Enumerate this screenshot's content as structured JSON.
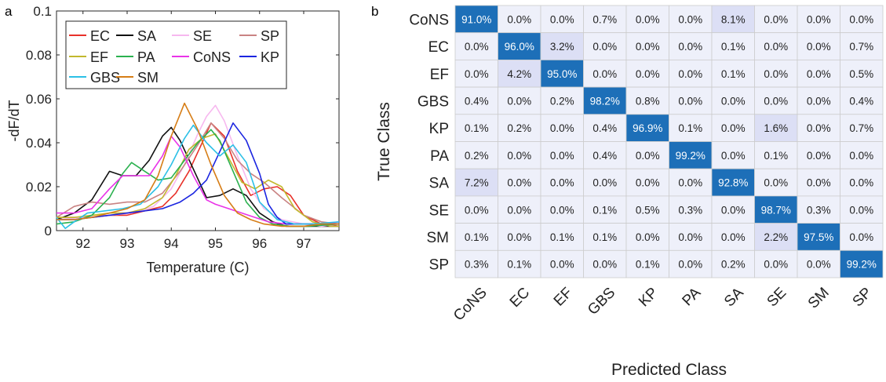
{
  "panel_a_label": "a",
  "panel_b_label": "b",
  "chart_data": [
    {
      "type": "line",
      "xlabel": "Temperature (C)",
      "ylabel": "-dF/dT",
      "xlim": [
        91.4,
        97.8
      ],
      "ylim": [
        0,
        0.1
      ],
      "xticks": [
        92,
        93,
        94,
        95,
        96,
        97
      ],
      "yticks": [
        0,
        0.02,
        0.04,
        0.06,
        0.08,
        0.1
      ],
      "ytick_labels": [
        "0",
        "0.02",
        "0.04",
        "0.06",
        "0.08",
        "0.1"
      ],
      "grid": false,
      "legend": "top-left",
      "series": [
        {
          "name": "EC",
          "color": "#e8312a",
          "x": [
            91.4,
            91.8,
            92.2,
            92.6,
            93.0,
            93.4,
            93.8,
            94.1,
            94.4,
            94.7,
            94.9,
            95.2,
            95.5,
            95.8,
            96.1,
            96.4,
            96.7,
            97.0,
            97.4,
            97.8
          ],
          "y": [
            0.006,
            0.006,
            0.006,
            0.007,
            0.007,
            0.009,
            0.011,
            0.017,
            0.027,
            0.04,
            0.049,
            0.043,
            0.027,
            0.016,
            0.019,
            0.02,
            0.016,
            0.007,
            0.003,
            0.002
          ]
        },
        {
          "name": "SA",
          "color": "#111111",
          "x": [
            91.4,
            91.8,
            92.2,
            92.6,
            92.9,
            93.2,
            93.5,
            93.8,
            94.0,
            94.2,
            94.5,
            94.8,
            95.1,
            95.4,
            95.7,
            96.0,
            96.3,
            96.6,
            97.0,
            97.4,
            97.8
          ],
          "y": [
            0.005,
            0.008,
            0.014,
            0.027,
            0.025,
            0.025,
            0.032,
            0.043,
            0.047,
            0.041,
            0.028,
            0.015,
            0.016,
            0.019,
            0.016,
            0.008,
            0.004,
            0.002,
            0.002,
            0.002,
            0.002
          ]
        },
        {
          "name": "SE",
          "color": "#f7b8ef",
          "x": [
            91.4,
            92.0,
            92.6,
            93.1,
            93.6,
            94.0,
            94.3,
            94.6,
            94.8,
            95.0,
            95.2,
            95.5,
            95.8,
            96.1,
            96.5,
            97.0,
            97.4,
            97.8
          ],
          "y": [
            0.005,
            0.006,
            0.007,
            0.008,
            0.011,
            0.019,
            0.03,
            0.044,
            0.052,
            0.057,
            0.05,
            0.034,
            0.019,
            0.01,
            0.005,
            0.003,
            0.002,
            0.003
          ]
        },
        {
          "name": "SP",
          "color": "#c98383",
          "x": [
            91.4,
            91.8,
            92.2,
            92.6,
            93.0,
            93.4,
            93.8,
            94.2,
            94.6,
            94.9,
            95.2,
            95.5,
            95.8,
            96.1,
            96.5,
            97.0,
            97.4,
            97.8
          ],
          "y": [
            0.006,
            0.011,
            0.013,
            0.012,
            0.013,
            0.013,
            0.017,
            0.027,
            0.039,
            0.049,
            0.042,
            0.032,
            0.026,
            0.022,
            0.015,
            0.007,
            0.004,
            0.003
          ]
        },
        {
          "name": "EF",
          "color": "#c2b82d",
          "x": [
            91.4,
            91.8,
            92.2,
            92.6,
            93.0,
            93.4,
            93.8,
            94.1,
            94.4,
            94.7,
            95.0,
            95.3,
            95.6,
            95.9,
            96.2,
            96.5,
            96.8,
            97.2,
            97.6,
            97.8
          ],
          "y": [
            0.006,
            0.006,
            0.007,
            0.008,
            0.008,
            0.01,
            0.015,
            0.025,
            0.037,
            0.042,
            0.044,
            0.033,
            0.022,
            0.019,
            0.023,
            0.02,
            0.01,
            0.004,
            0.002,
            0.002
          ]
        },
        {
          "name": "PA",
          "color": "#2bb14f",
          "x": [
            91.4,
            91.8,
            92.2,
            92.6,
            92.9,
            93.1,
            93.4,
            93.7,
            94.0,
            94.3,
            94.6,
            94.9,
            95.1,
            95.4,
            95.7,
            96.0,
            96.3,
            96.7,
            97.1,
            97.8
          ],
          "y": [
            0.003,
            0.004,
            0.007,
            0.015,
            0.026,
            0.031,
            0.027,
            0.023,
            0.024,
            0.032,
            0.04,
            0.046,
            0.041,
            0.027,
            0.013,
            0.006,
            0.003,
            0.002,
            0.002,
            0.003
          ]
        },
        {
          "name": "CoNS",
          "color": "#e933e8",
          "x": [
            91.4,
            91.8,
            92.2,
            92.6,
            92.9,
            93.2,
            93.5,
            93.8,
            94.0,
            94.2,
            94.5,
            94.8,
            95.0,
            95.3,
            95.6,
            95.9,
            96.2,
            96.6,
            97.0,
            97.4,
            97.8
          ],
          "y": [
            0.008,
            0.008,
            0.01,
            0.019,
            0.025,
            0.025,
            0.025,
            0.034,
            0.043,
            0.038,
            0.025,
            0.014,
            0.012,
            0.01,
            0.008,
            0.006,
            0.004,
            0.003,
            0.003,
            0.003,
            0.004
          ]
        },
        {
          "name": "KP",
          "color": "#1b25e0",
          "x": [
            91.4,
            91.8,
            92.2,
            92.6,
            93.0,
            93.4,
            93.8,
            94.2,
            94.5,
            94.8,
            95.1,
            95.4,
            95.7,
            96.0,
            96.2,
            96.4,
            96.6,
            96.9,
            97.3,
            97.8
          ],
          "y": [
            0.005,
            0.005,
            0.006,
            0.007,
            0.008,
            0.009,
            0.01,
            0.013,
            0.017,
            0.023,
            0.036,
            0.049,
            0.041,
            0.026,
            0.012,
            0.006,
            0.003,
            0.003,
            0.003,
            0.003
          ]
        },
        {
          "name": "GBS",
          "color": "#2cc0e6",
          "x": [
            91.4,
            91.6,
            91.8,
            92.1,
            92.5,
            92.9,
            93.3,
            93.7,
            94.0,
            94.3,
            94.5,
            94.8,
            95.1,
            95.4,
            95.7,
            96.0,
            96.4,
            96.8,
            97.2,
            97.8
          ],
          "y": [
            0.006,
            0.001,
            0.004,
            0.008,
            0.009,
            0.01,
            0.012,
            0.02,
            0.03,
            0.042,
            0.048,
            0.04,
            0.034,
            0.039,
            0.031,
            0.013,
            0.005,
            0.003,
            0.003,
            0.004
          ]
        },
        {
          "name": "SM",
          "color": "#d67d16",
          "x": [
            91.4,
            91.8,
            92.2,
            92.6,
            93.0,
            93.4,
            93.7,
            94.0,
            94.3,
            94.6,
            94.9,
            95.2,
            95.5,
            95.8,
            96.1,
            96.5,
            97.0,
            97.4,
            97.8
          ],
          "y": [
            0.005,
            0.005,
            0.006,
            0.008,
            0.01,
            0.014,
            0.025,
            0.043,
            0.058,
            0.046,
            0.03,
            0.016,
            0.008,
            0.005,
            0.003,
            0.002,
            0.002,
            0.003,
            0.003
          ]
        }
      ],
      "legend_order": [
        "EC",
        "SA",
        "SE",
        "SP",
        "EF",
        "PA",
        "CoNS",
        "KP",
        "GBS",
        "SM"
      ]
    },
    {
      "type": "heatmap",
      "xlabel": "Predicted Class",
      "ylabel": "True Class",
      "labels": [
        "CoNS",
        "EC",
        "EF",
        "GBS",
        "KP",
        "PA",
        "SA",
        "SE",
        "SM",
        "SP"
      ],
      "colors": {
        "diagonal": "#1d6fb8",
        "off_light": "#eef0fa",
        "off_tint": "#dcdff5",
        "border": "#cccccc"
      },
      "matrix": [
        [
          "91.0%",
          "0.0%",
          "0.0%",
          "0.7%",
          "0.0%",
          "0.0%",
          "8.1%",
          "0.0%",
          "0.0%",
          "0.0%"
        ],
        [
          "0.0%",
          "96.0%",
          "3.2%",
          "0.0%",
          "0.0%",
          "0.0%",
          "0.1%",
          "0.0%",
          "0.0%",
          "0.7%"
        ],
        [
          "0.0%",
          "4.2%",
          "95.0%",
          "0.0%",
          "0.0%",
          "0.0%",
          "0.1%",
          "0.0%",
          "0.0%",
          "0.5%"
        ],
        [
          "0.4%",
          "0.0%",
          "0.2%",
          "98.2%",
          "0.8%",
          "0.0%",
          "0.0%",
          "0.0%",
          "0.0%",
          "0.4%"
        ],
        [
          "0.1%",
          "0.2%",
          "0.0%",
          "0.4%",
          "96.9%",
          "0.1%",
          "0.0%",
          "1.6%",
          "0.0%",
          "0.7%"
        ],
        [
          "0.2%",
          "0.0%",
          "0.0%",
          "0.4%",
          "0.0%",
          "99.2%",
          "0.0%",
          "0.1%",
          "0.0%",
          "0.0%"
        ],
        [
          "7.2%",
          "0.0%",
          "0.0%",
          "0.0%",
          "0.0%",
          "0.0%",
          "92.8%",
          "0.0%",
          "0.0%",
          "0.0%"
        ],
        [
          "0.0%",
          "0.0%",
          "0.0%",
          "0.1%",
          "0.5%",
          "0.3%",
          "0.0%",
          "98.7%",
          "0.3%",
          "0.0%"
        ],
        [
          "0.1%",
          "0.0%",
          "0.1%",
          "0.1%",
          "0.0%",
          "0.0%",
          "0.0%",
          "2.2%",
          "97.5%",
          "0.0%"
        ],
        [
          "0.3%",
          "0.1%",
          "0.0%",
          "0.0%",
          "0.1%",
          "0.0%",
          "0.2%",
          "0.0%",
          "0.0%",
          "99.2%"
        ]
      ]
    }
  ]
}
